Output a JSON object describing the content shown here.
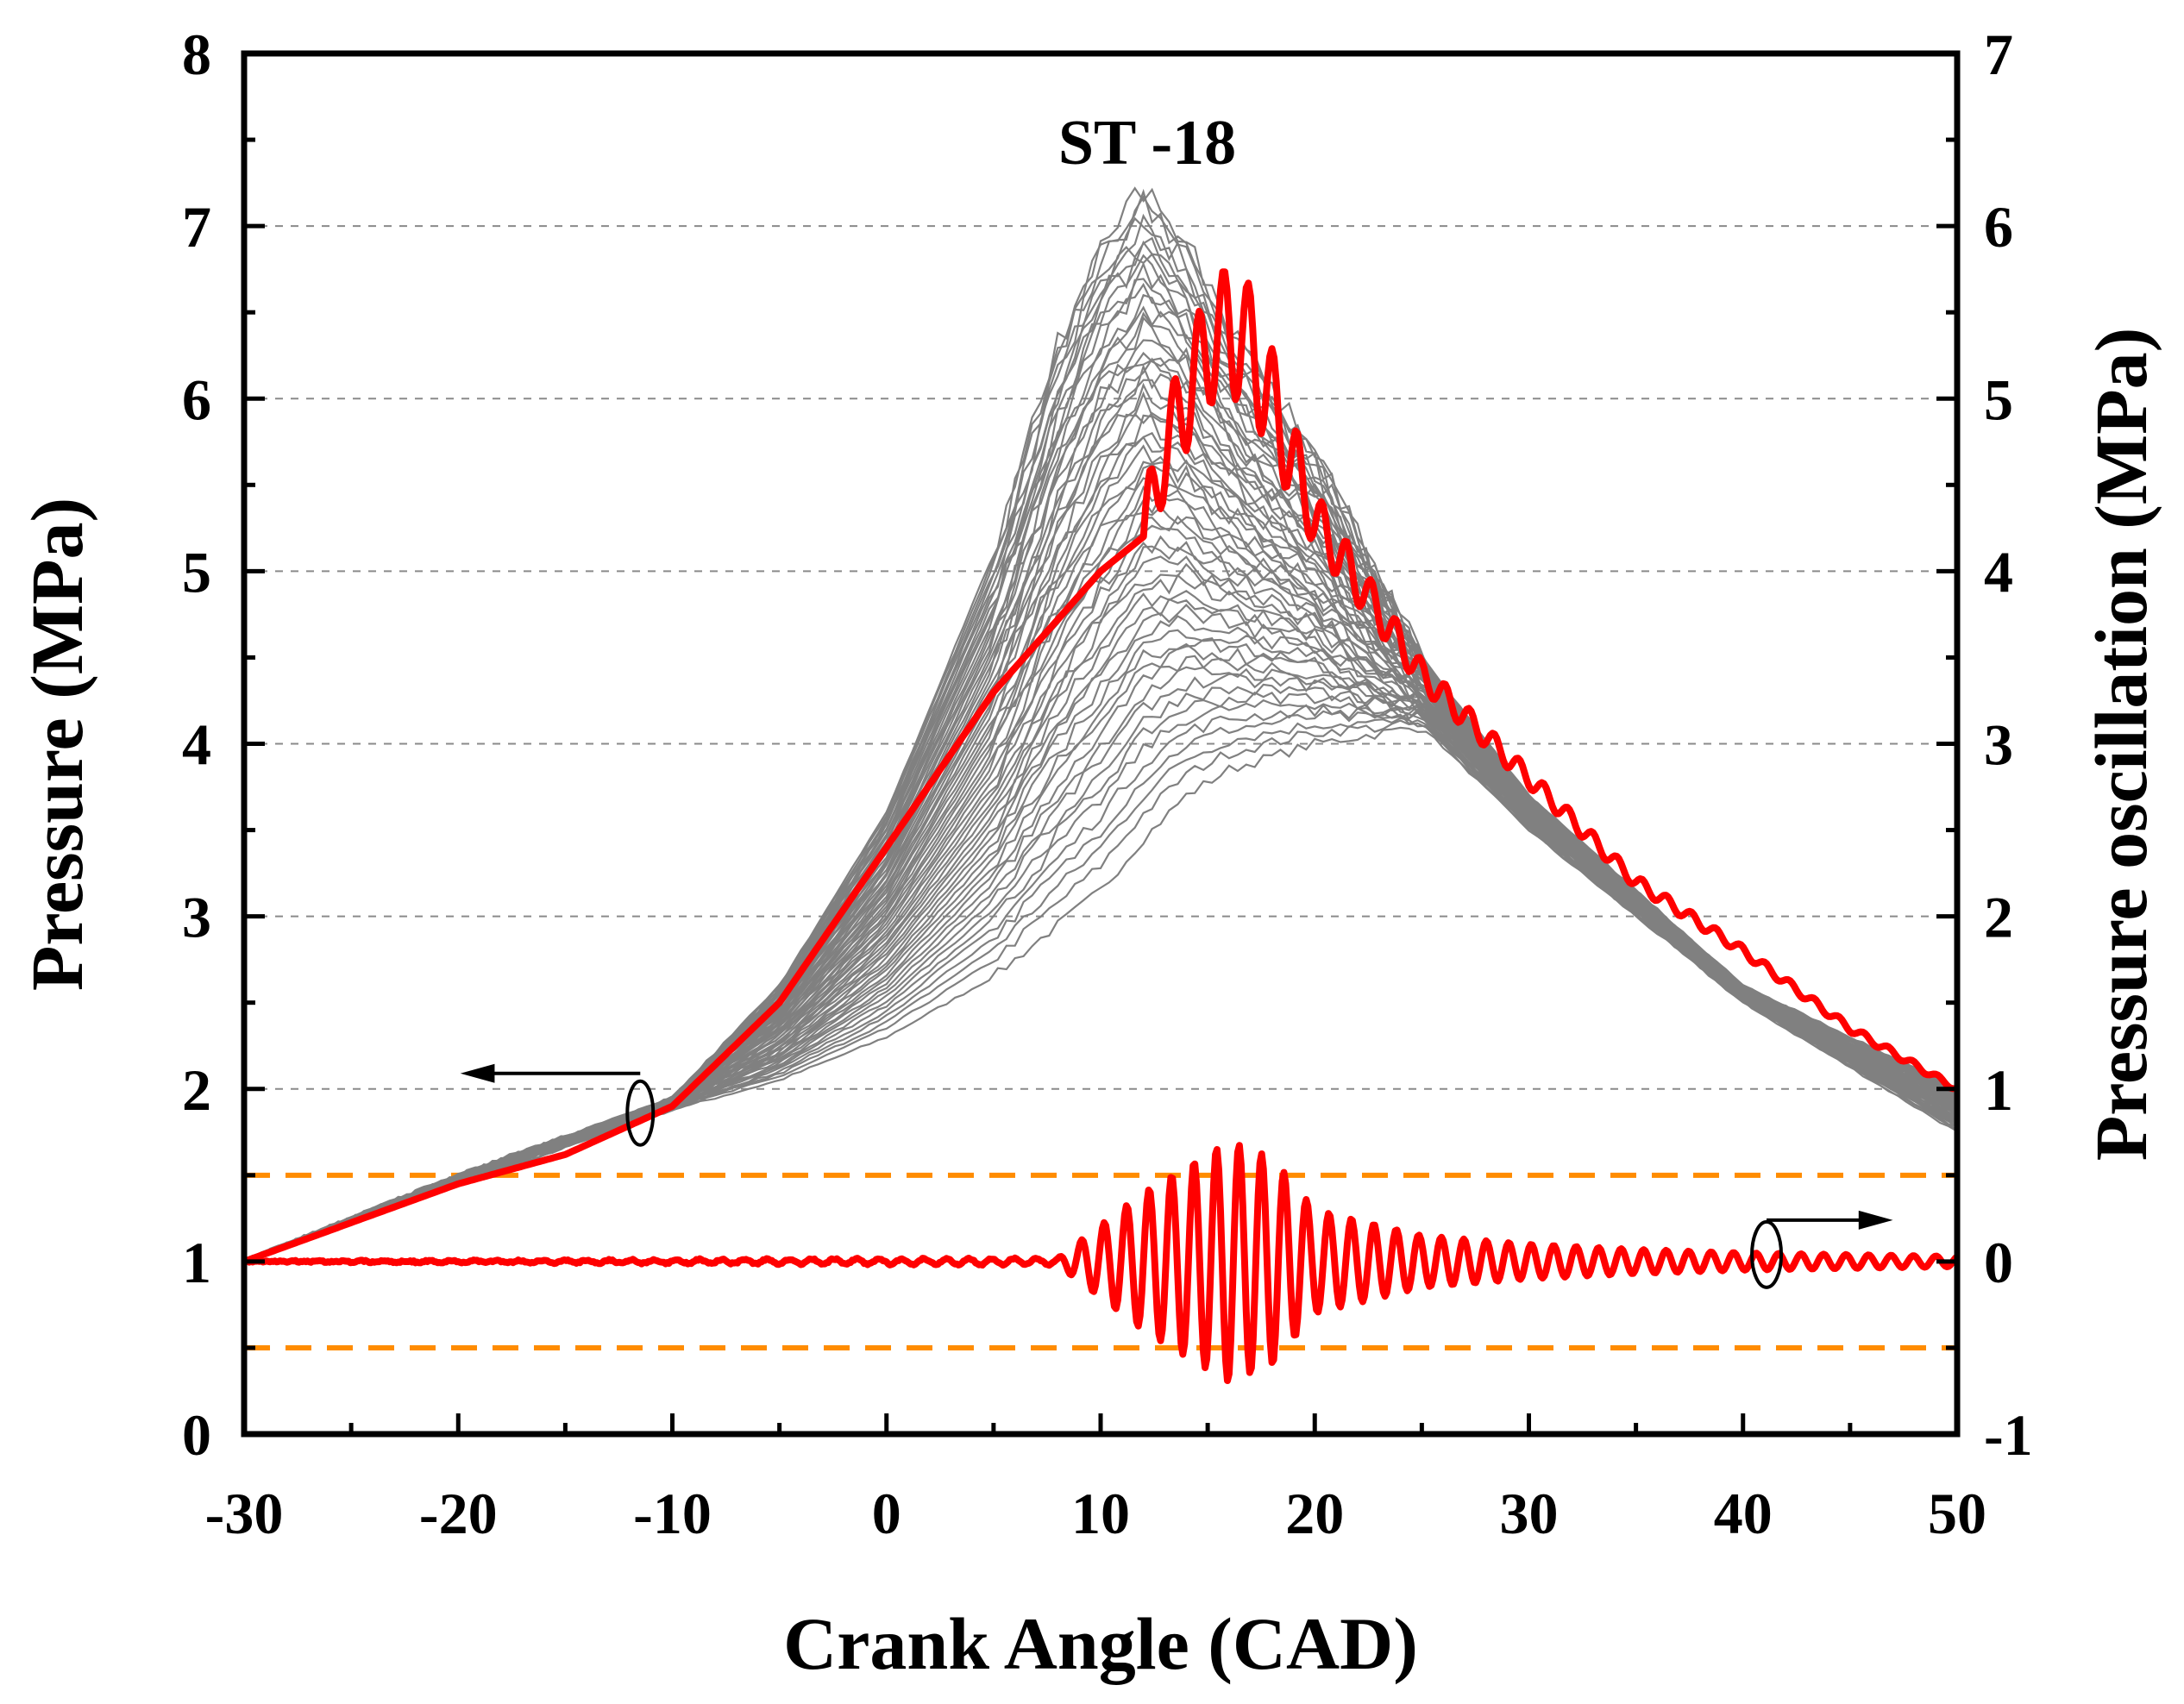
{
  "chart_data": {
    "type": "line",
    "title": "ST -18",
    "xlabel": "Crank Angle (CAD)",
    "ylabel": "Pressure (MPa)",
    "y2label": "Pressure oscillation (MPa)",
    "xlim": [
      -30,
      50
    ],
    "ylim": [
      0,
      8
    ],
    "y2lim": [
      -1,
      7
    ],
    "x_ticks": [
      "-30",
      "-20",
      "-10",
      "0",
      "10",
      "20",
      "30",
      "40",
      "50"
    ],
    "y_ticks": [
      "0",
      "1",
      "2",
      "3",
      "4",
      "5",
      "6",
      "7",
      "8"
    ],
    "y2_ticks": [
      "-1",
      "0",
      "1",
      "2",
      "3",
      "4",
      "5",
      "6",
      "7"
    ],
    "grid": "horizontal dashed at pressure 2-7",
    "threshold_lines_y2": [
      0.5,
      -0.5
    ],
    "colors": {
      "cycles": "#808080",
      "highlight": "#ff0000",
      "threshold": "#ff8c00"
    },
    "series": [
      {
        "role": "individual cycles (gray envelope)",
        "axis": "left",
        "x": [
          -30,
          -20,
          -10,
          -5,
          0,
          5,
          8,
          10,
          12,
          14,
          16,
          20,
          25,
          30,
          40,
          50
        ],
        "upper": [
          1.0,
          1.5,
          1.95,
          2.6,
          3.6,
          5.1,
          6.3,
          6.9,
          7.2,
          6.9,
          6.4,
          5.7,
          4.5,
          3.7,
          2.6,
          2.0
        ],
        "lower": [
          1.0,
          1.45,
          1.88,
          2.05,
          2.3,
          2.65,
          2.95,
          3.15,
          3.45,
          3.7,
          3.85,
          4.0,
          4.1,
          3.5,
          2.5,
          1.75
        ]
      },
      {
        "role": "highlighted cycle pressure",
        "axis": "left",
        "x": [
          -30,
          -20,
          -15,
          -10,
          -5,
          0,
          5,
          10,
          12,
          13,
          15,
          16,
          17,
          20,
          25,
          30,
          35,
          40,
          45,
          50
        ],
        "values": [
          1.0,
          1.45,
          1.62,
          1.9,
          2.5,
          3.4,
          4.3,
          5.0,
          5.2,
          5.7,
          6.3,
          6.4,
          6.3,
          5.3,
          4.4,
          3.8,
          3.2,
          2.8,
          2.35,
          2.0
        ]
      },
      {
        "role": "highlighted cycle oscillation",
        "axis": "right",
        "x": [
          -30,
          8,
          12,
          14,
          16,
          18,
          20,
          25,
          30,
          35,
          40,
          45,
          50
        ],
        "amplitude": [
          0.0,
          0.02,
          0.4,
          0.55,
          0.7,
          0.6,
          0.3,
          0.15,
          0.1,
          0.07,
          0.05,
          0.04,
          0.03
        ]
      }
    ]
  }
}
